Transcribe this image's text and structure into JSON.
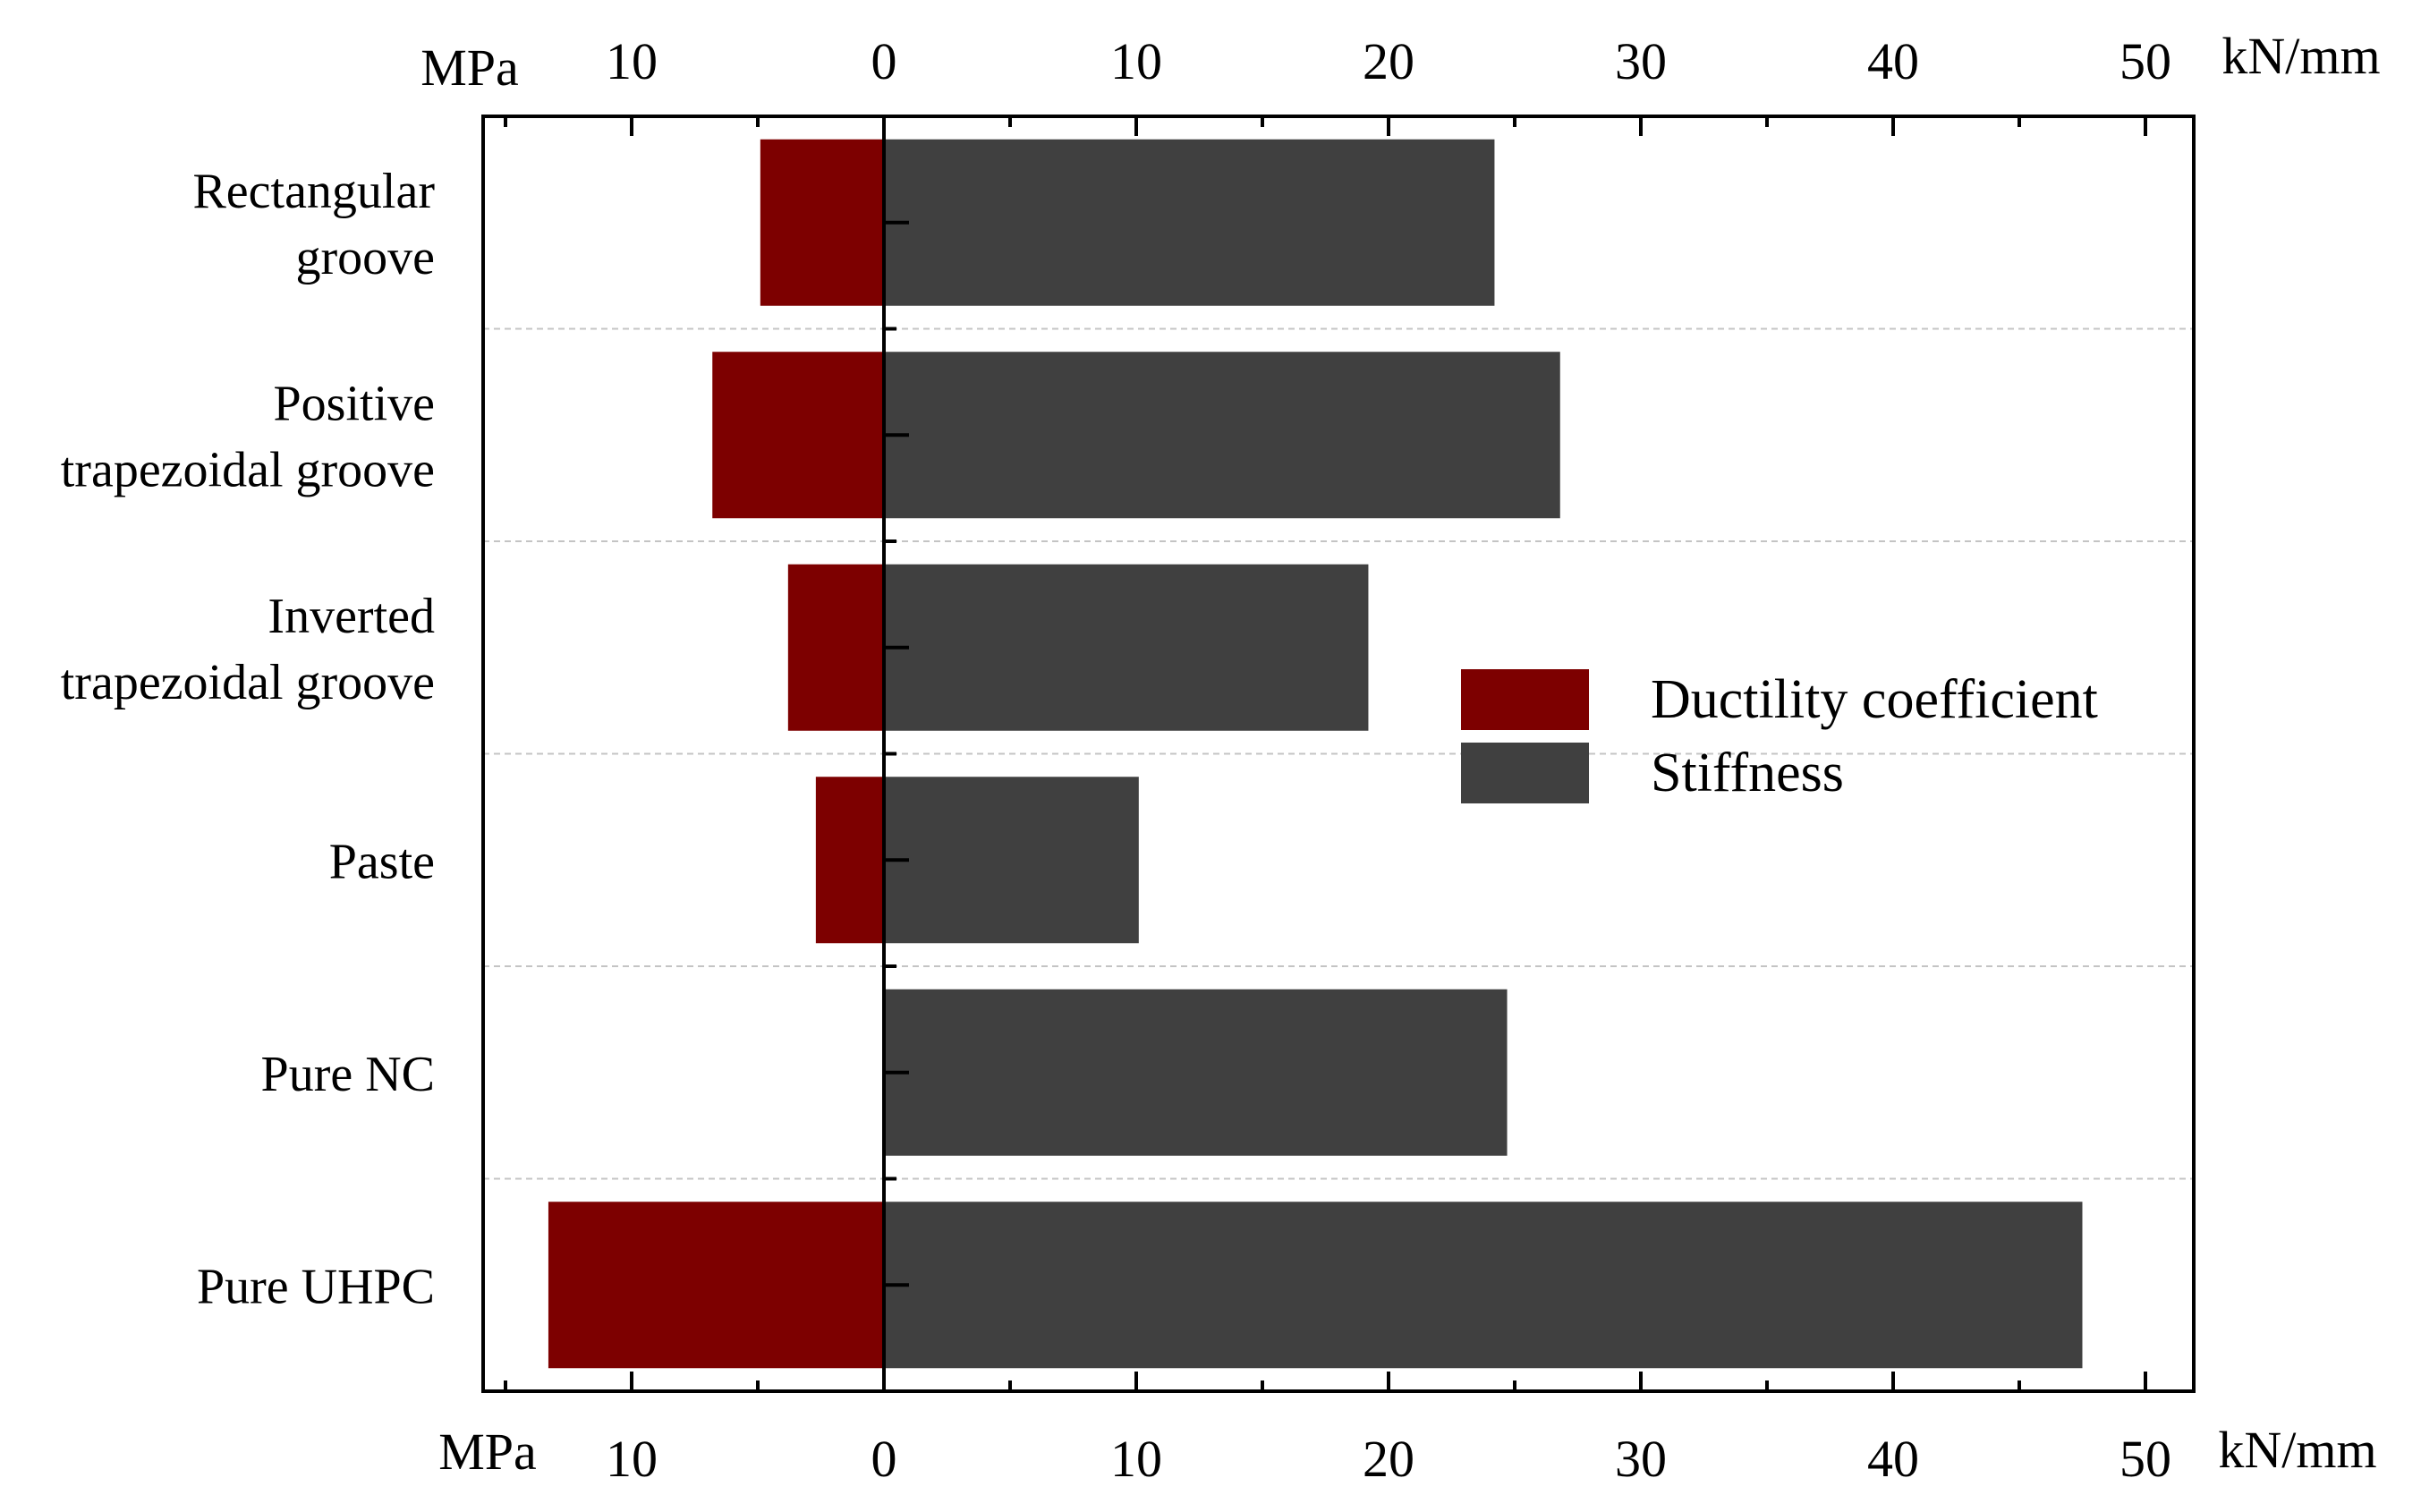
{
  "chart_data": {
    "type": "bar",
    "orientation": "horizontal",
    "diverging": true,
    "categories": [
      [
        "Rectangular",
        "groove"
      ],
      [
        "Positive",
        "trapezoidal groove"
      ],
      [
        "Inverted",
        "trapezoidal groove"
      ],
      [
        "Paste"
      ],
      [
        "Pure NC"
      ],
      [
        "Pure UHPC"
      ]
    ],
    "series": [
      {
        "name": "Ductility coefficient",
        "direction": "left",
        "color": "#7d0000",
        "values": [
          4.9,
          6.8,
          3.8,
          2.7,
          0,
          13.3
        ]
      },
      {
        "name": "Stiffness",
        "direction": "right",
        "color": "#404040",
        "values": [
          24.2,
          26.8,
          19.2,
          10.1,
          24.7,
          47.5
        ]
      }
    ],
    "axes": {
      "left_unit": "MPa",
      "right_unit": "kN/mm",
      "left_ticks": [
        10,
        0
      ],
      "right_ticks": [
        10,
        20,
        30,
        40,
        50
      ],
      "xlim": [
        -16,
        52
      ]
    },
    "legend": {
      "position": "center-right",
      "entries": [
        "Ductility coefficient",
        "Stiffness"
      ]
    },
    "grid": "dashed horizontal separators between categories"
  }
}
